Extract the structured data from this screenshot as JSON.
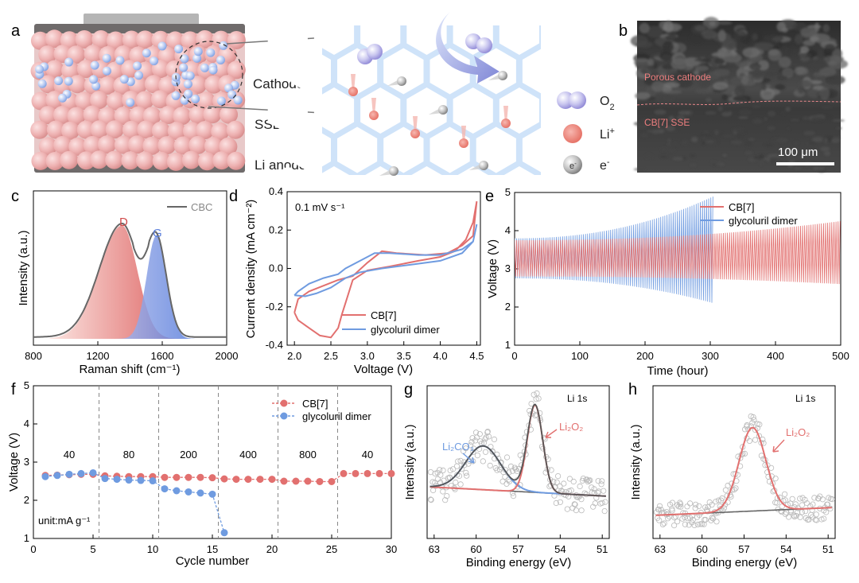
{
  "panels": {
    "a": {
      "letter": "a",
      "layers": {
        "cathode": "Cathode",
        "sse": "SSE",
        "anode": "Li anode"
      },
      "legend": {
        "o2_sub": "2",
        "li_sup": "+",
        "e_sup": "-"
      },
      "electron_glyph": "e"
    },
    "b": {
      "letter": "b",
      "label_top": "Porous cathode",
      "label_bottom": "CB[7] SSE",
      "scalebar": "100 μm"
    },
    "c": {
      "letter": "c"
    },
    "d": {
      "letter": "d"
    },
    "e": {
      "letter": "e"
    },
    "f": {
      "letter": "f"
    },
    "g": {
      "letter": "g"
    },
    "h": {
      "letter": "h"
    }
  },
  "colors": {
    "red": "#e2706f",
    "blue": "#6f9be0",
    "gray": "#666666",
    "mof": "#cfe3f9"
  },
  "chart_data": [
    {
      "id": "c",
      "type": "area",
      "xlabel": "Raman shift (cm⁻¹)",
      "ylabel": "Intensity (a.u.)",
      "xlim": [
        800,
        2000
      ],
      "xticks": [
        "800",
        "1200",
        "1600",
        "2000"
      ],
      "legend": "CBC",
      "peaks": [
        {
          "name": "D",
          "center": 1350,
          "height": 0.95
        },
        {
          "name": "G",
          "center": 1565,
          "height": 0.87
        }
      ],
      "series": [
        {
          "name": "CBC",
          "x": [
            800,
            950,
            1050,
            1150,
            1250,
            1300,
            1350,
            1400,
            1450,
            1500,
            1550,
            1580,
            1620,
            1700,
            1800,
            2000
          ],
          "y": [
            0.02,
            0.03,
            0.12,
            0.35,
            0.75,
            0.92,
            0.97,
            0.9,
            0.79,
            0.84,
            0.92,
            0.9,
            0.72,
            0.28,
            0.04,
            0.0
          ]
        }
      ]
    },
    {
      "id": "d",
      "type": "line",
      "xlabel": "Voltage (V)",
      "ylabel": "Current density (mA cm⁻²)",
      "xlim": [
        1.9,
        4.55
      ],
      "ylim": [
        -0.4,
        0.4
      ],
      "xticks": [
        "2.0",
        "2.5",
        "3.0",
        "3.5",
        "4.0",
        "4.5"
      ],
      "yticks": [
        "-0.4",
        "-0.2",
        "0.0",
        "0.2",
        "0.4"
      ],
      "annotation": "0.1 mV s⁻¹",
      "series": [
        {
          "name": "CB[7]",
          "x": [
            2.0,
            2.05,
            2.2,
            2.35,
            2.5,
            2.6,
            2.65,
            2.7,
            2.8,
            3.0,
            3.3,
            3.7,
            4.0,
            4.2,
            4.35,
            4.45,
            4.5,
            4.45,
            4.3,
            4.1,
            3.8,
            3.4,
            3.2,
            3.0,
            2.8,
            2.6,
            2.4,
            2.2,
            2.05,
            2.0
          ],
          "y": [
            -0.23,
            -0.27,
            -0.31,
            -0.35,
            -0.36,
            -0.31,
            -0.24,
            -0.18,
            -0.06,
            -0.01,
            0.01,
            0.04,
            0.06,
            0.09,
            0.15,
            0.24,
            0.35,
            0.17,
            0.12,
            0.08,
            0.07,
            0.08,
            0.09,
            0.03,
            -0.04,
            -0.06,
            -0.09,
            -0.12,
            -0.16,
            -0.23
          ]
        },
        {
          "name": "glycoluril dimer",
          "x": [
            2.0,
            2.15,
            2.3,
            2.5,
            2.7,
            2.9,
            3.2,
            3.6,
            4.0,
            4.3,
            4.45,
            4.5,
            4.45,
            4.3,
            4.0,
            3.7,
            3.3,
            3.1,
            2.9,
            2.7,
            2.6,
            2.4,
            2.2,
            2.05,
            2.0
          ],
          "y": [
            -0.14,
            -0.145,
            -0.13,
            -0.1,
            -0.05,
            -0.02,
            0.0,
            0.02,
            0.04,
            0.08,
            0.14,
            0.23,
            0.14,
            0.1,
            0.07,
            0.07,
            0.08,
            0.08,
            0.04,
            0.0,
            -0.03,
            -0.05,
            -0.08,
            -0.12,
            -0.14
          ]
        }
      ]
    },
    {
      "id": "e",
      "type": "line",
      "xlabel": "Time (hour)",
      "ylabel": "Voltage (V)",
      "xlim": [
        0,
        500
      ],
      "ylim": [
        1,
        5
      ],
      "xticks": [
        "0",
        "100",
        "200",
        "300",
        "400",
        "500"
      ],
      "yticks": [
        "1",
        "2",
        "3",
        "4",
        "5"
      ],
      "series": [
        {
          "name": "CB[7]",
          "t_end": 500,
          "upper_start": 3.75,
          "upper_end": 4.25,
          "lower_start": 2.8,
          "lower_end": 2.6
        },
        {
          "name": "glycoluril dimer",
          "t_end": 305,
          "upper_start": 3.8,
          "upper_end": 4.9,
          "lower_start": 2.75,
          "lower_end": 2.1
        }
      ]
    },
    {
      "id": "f",
      "type": "line",
      "xlabel": "Cycle number",
      "ylabel": "Voltage (V)",
      "xlim": [
        0,
        30
      ],
      "ylim": [
        1,
        5
      ],
      "xticks": [
        "0",
        "5",
        "10",
        "15",
        "20",
        "25",
        "30"
      ],
      "yticks": [
        "1",
        "2",
        "3",
        "4",
        "5"
      ],
      "rate_labels": [
        "40",
        "80",
        "200",
        "400",
        "800",
        "40"
      ],
      "rate_dividers": [
        5.5,
        10.5,
        15.5,
        20.5,
        25.5
      ],
      "unit_label": "unit:mA g⁻¹",
      "series": [
        {
          "name": "CB[7]",
          "x": [
            1,
            2,
            3,
            4,
            5,
            6,
            7,
            8,
            9,
            10,
            11,
            12,
            13,
            14,
            15,
            16,
            17,
            18,
            19,
            20,
            21,
            22,
            23,
            24,
            25,
            26,
            27,
            28,
            29,
            30
          ],
          "y": [
            2.65,
            2.66,
            2.67,
            2.68,
            2.68,
            2.64,
            2.63,
            2.62,
            2.62,
            2.62,
            2.6,
            2.6,
            2.6,
            2.6,
            2.59,
            2.56,
            2.55,
            2.55,
            2.55,
            2.55,
            2.5,
            2.5,
            2.5,
            2.49,
            2.49,
            2.7,
            2.7,
            2.7,
            2.7,
            2.7
          ]
        },
        {
          "name": "glycoluril dimer",
          "x": [
            1,
            2,
            3,
            4,
            5,
            6,
            7,
            8,
            9,
            10,
            11,
            12,
            13,
            14,
            15,
            16
          ],
          "y": [
            2.62,
            2.65,
            2.68,
            2.7,
            2.72,
            2.57,
            2.55,
            2.53,
            2.52,
            2.51,
            2.3,
            2.25,
            2.22,
            2.19,
            2.16,
            1.15
          ]
        }
      ]
    },
    {
      "id": "g",
      "type": "line",
      "xlabel": "Binding energy (eV)",
      "ylabel": "Intensity (a.u.)",
      "xlim": [
        63.5,
        50.5
      ],
      "xticks": [
        "63",
        "60",
        "57",
        "54",
        "51"
      ],
      "tag": "Li 1s",
      "peaks": [
        {
          "name": "Li₂CO₃",
          "center": 59.5,
          "height": 0.55
        },
        {
          "name": "Li₂O₂",
          "center": 55.8,
          "height": 1.0
        }
      ]
    },
    {
      "id": "h",
      "type": "line",
      "xlabel": "Binding energy (eV)",
      "ylabel": "Intensity (a.u.)",
      "xlim": [
        63.5,
        50.5
      ],
      "xticks": [
        "63",
        "60",
        "57",
        "54",
        "51"
      ],
      "tag": "Li 1s",
      "peaks": [
        {
          "name": "Li₂O₂",
          "center": 56.4,
          "height": 1.0
        }
      ]
    }
  ]
}
